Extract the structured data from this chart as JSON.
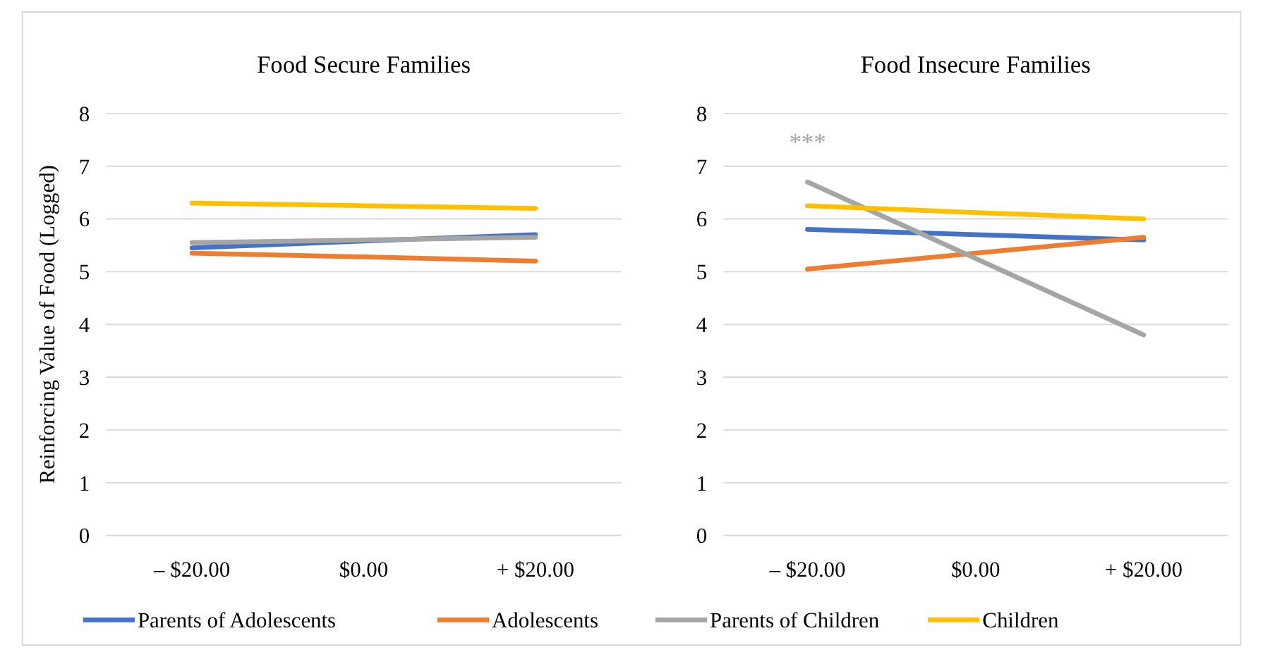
{
  "chart_data": [
    {
      "type": "line",
      "title": "Food Secure Families",
      "ylabel": "Reinforcing Value of Food (Logged)",
      "categories": [
        "– $20.00",
        "$0.00",
        "+ $20.00"
      ],
      "ylim": [
        0,
        8
      ],
      "yticks": [
        0,
        1,
        2,
        3,
        4,
        5,
        6,
        7,
        8
      ],
      "grid": "y",
      "legend": "bottom",
      "marker": "none",
      "line_style": "solid",
      "series": [
        {
          "name": "Parents of Adolescents",
          "color": "#4472c4",
          "values": [
            5.45,
            5.58,
            5.7
          ]
        },
        {
          "name": "Adolescents",
          "color": "#ed7d31",
          "values": [
            5.35,
            5.28,
            5.2
          ]
        },
        {
          "name": "Parents of Children",
          "color": "#a5a5a5",
          "values": [
            5.55,
            5.6,
            5.65
          ]
        },
        {
          "name": "Children",
          "color": "#ffc000",
          "values": [
            6.3,
            6.25,
            6.2
          ]
        }
      ]
    },
    {
      "type": "line",
      "title": "Food Insecure Families",
      "categories": [
        "– $20.00",
        "$0.00",
        "+ $20.00"
      ],
      "ylim": [
        0,
        8
      ],
      "yticks": [
        0,
        1,
        2,
        3,
        4,
        5,
        6,
        7,
        8
      ],
      "grid": "y",
      "marker": "none",
      "line_style": "solid",
      "annotations": [
        "***"
      ],
      "series": [
        {
          "color": "#4472c4",
          "values": [
            5.8,
            5.7,
            5.6
          ]
        },
        {
          "color": "#ed7d31",
          "values": [
            5.05,
            5.35,
            5.65
          ]
        },
        {
          "color": "#a5a5a5",
          "values": [
            6.7,
            5.25,
            3.8
          ]
        },
        {
          "color": "#ffc000",
          "values": [
            6.25,
            6.12,
            6.0
          ]
        }
      ]
    }
  ]
}
